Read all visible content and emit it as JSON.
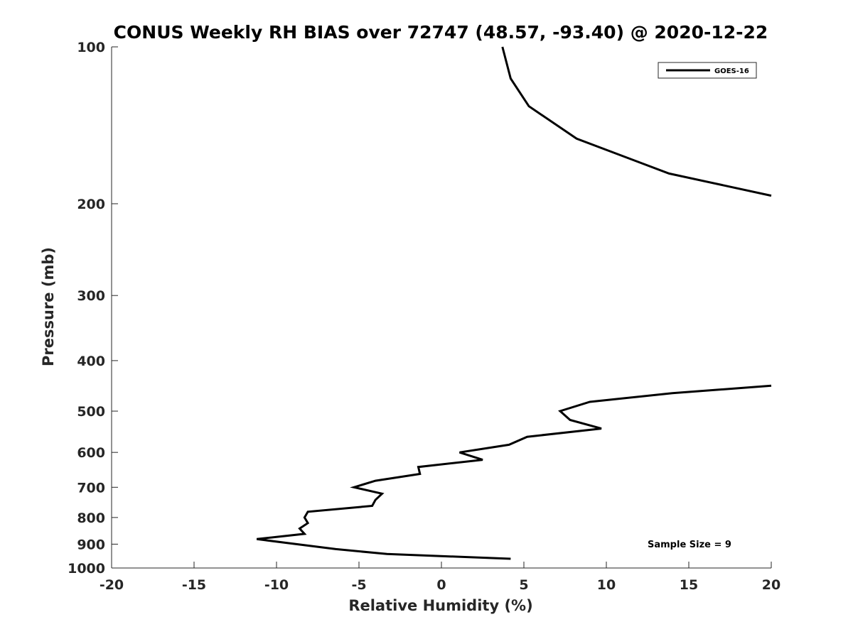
{
  "chart_data": {
    "type": "line",
    "title": "CONUS Weekly RH BIAS over 72747 (48.57, -93.40) @ 2020-12-22",
    "xlabel": "Relative Humidity (%)",
    "ylabel": "Pressure (mb)",
    "xlim": [
      -20,
      20
    ],
    "ylim": [
      100,
      1000
    ],
    "y_scale": "log",
    "y_reversed": true,
    "x_ticks": [
      -20,
      -15,
      -10,
      -5,
      0,
      5,
      10,
      15,
      20
    ],
    "x_tick_labels": [
      "-20",
      "-15",
      "-10",
      "-5",
      "0",
      "5",
      "10",
      "15",
      "20"
    ],
    "y_ticks": [
      100,
      200,
      300,
      400,
      500,
      600,
      700,
      800,
      900,
      1000
    ],
    "y_tick_labels": [
      "100",
      "200",
      "300",
      "400",
      "500",
      "600",
      "700",
      "800",
      "900",
      "1000"
    ],
    "grid": false,
    "legend_position": "top-right",
    "annotation": "Sample Size = 9",
    "series": [
      {
        "name": "GOES-16",
        "color": "#000000",
        "segments": [
          [
            {
              "x": 3.7,
              "y": 100
            },
            {
              "x": 4.2,
              "y": 115
            },
            {
              "x": 5.3,
              "y": 130
            },
            {
              "x": 8.2,
              "y": 150
            },
            {
              "x": 13.8,
              "y": 175
            },
            {
              "x": 20.0,
              "y": 193
            }
          ],
          [
            {
              "x": 20.0,
              "y": 447
            },
            {
              "x": 14.0,
              "y": 462
            },
            {
              "x": 9.0,
              "y": 480
            },
            {
              "x": 7.2,
              "y": 500
            },
            {
              "x": 7.8,
              "y": 520
            },
            {
              "x": 9.7,
              "y": 540
            },
            {
              "x": 5.2,
              "y": 560
            },
            {
              "x": 4.1,
              "y": 580
            },
            {
              "x": 1.1,
              "y": 600
            },
            {
              "x": 2.5,
              "y": 620
            },
            {
              "x": -1.4,
              "y": 640
            },
            {
              "x": -1.3,
              "y": 660
            },
            {
              "x": -4.0,
              "y": 680
            },
            {
              "x": -5.3,
              "y": 700
            },
            {
              "x": -3.6,
              "y": 720
            },
            {
              "x": -4.0,
              "y": 740
            },
            {
              "x": -4.2,
              "y": 760
            },
            {
              "x": -8.1,
              "y": 780
            },
            {
              "x": -8.3,
              "y": 800
            },
            {
              "x": -8.1,
              "y": 820
            },
            {
              "x": -8.6,
              "y": 840
            },
            {
              "x": -8.3,
              "y": 860
            },
            {
              "x": -11.2,
              "y": 880
            },
            {
              "x": -6.4,
              "y": 920
            },
            {
              "x": -3.3,
              "y": 940
            },
            {
              "x": 4.2,
              "y": 960
            }
          ]
        ]
      }
    ]
  }
}
